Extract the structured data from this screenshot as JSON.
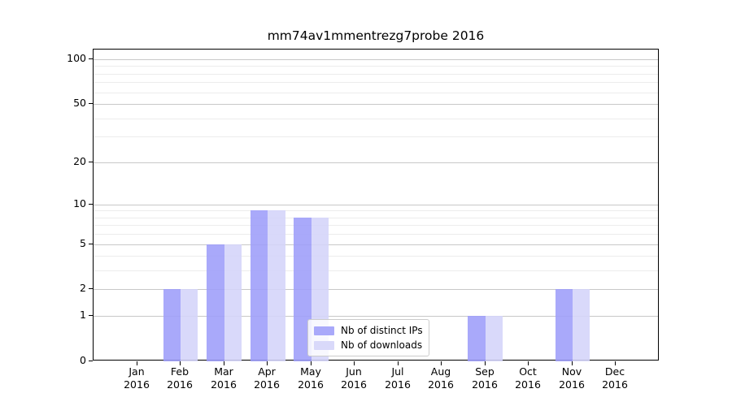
{
  "title": "mm74av1mmentrezg7probe 2016",
  "chart_data": {
    "type": "bar",
    "title": "mm74av1mmentrezg7probe 2016",
    "categories": [
      "Jan\n2016",
      "Feb\n2016",
      "Mar\n2016",
      "Apr\n2016",
      "May\n2016",
      "Jun\n2016",
      "Jul\n2016",
      "Aug\n2016",
      "Sep\n2016",
      "Oct\n2016",
      "Nov\n2016",
      "Dec\n2016"
    ],
    "series": [
      {
        "name": "Nb of distinct IPs",
        "color": "#a9a9fa",
        "values": [
          0,
          2,
          5,
          9,
          8,
          0,
          0,
          0,
          1,
          0,
          2,
          0
        ]
      },
      {
        "name": "Nb of downloads",
        "color": "#d9d9fa",
        "values": [
          0,
          2,
          5,
          9,
          8,
          0,
          0,
          0,
          1,
          0,
          2,
          0
        ]
      }
    ],
    "xlabel": "",
    "ylabel": "",
    "yscale": "log1p",
    "yticks": [
      0,
      1,
      2,
      5,
      10,
      20,
      50,
      100
    ],
    "yticks_minor": [
      3,
      4,
      6,
      7,
      8,
      9,
      30,
      40,
      60,
      70,
      80,
      90
    ],
    "ylim": [
      0,
      116
    ],
    "ymax": 116,
    "grid": "horizontal",
    "legend_position": "lower-center",
    "axis_color": "#000000",
    "grid_major_color": "#c8c8c8",
    "grid_minor_color": "#ececec"
  },
  "legend": {
    "items": [
      {
        "label": "Nb of distinct IPs"
      },
      {
        "label": "Nb of downloads"
      }
    ]
  }
}
